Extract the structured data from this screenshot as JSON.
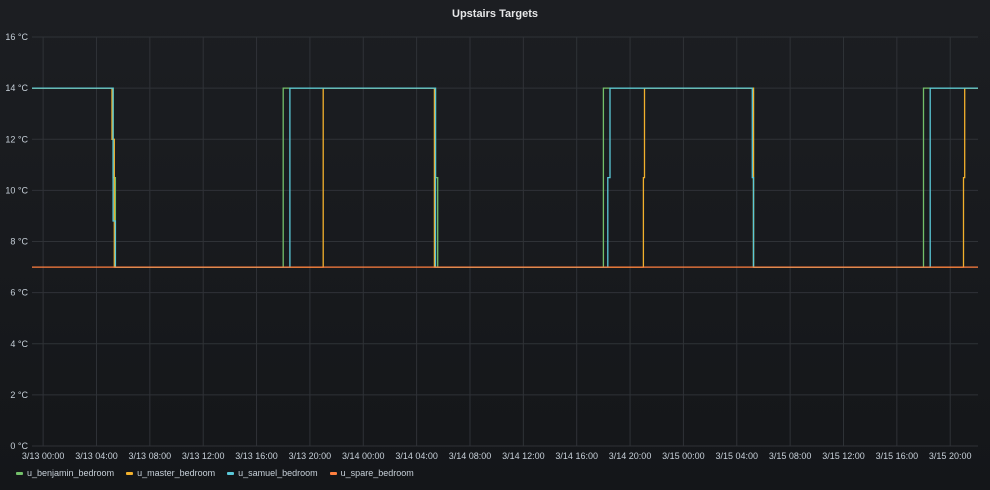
{
  "chart_data": {
    "type": "line",
    "title": "Upstairs Targets",
    "ylim": [
      0,
      16
    ],
    "y_ticks": [
      "0 °C",
      "2 °C",
      "4 °C",
      "6 °C",
      "8 °C",
      "10 °C",
      "12 °C",
      "14 °C",
      "16 °C"
    ],
    "y_values": [
      0,
      2,
      4,
      6,
      8,
      10,
      12,
      14,
      16
    ],
    "xlim": [
      "3/12 23:10",
      "3/15 22:05"
    ],
    "x_ticks": [
      "3/13 00:00",
      "3/13 04:00",
      "3/13 08:00",
      "3/13 12:00",
      "3/13 16:00",
      "3/13 20:00",
      "3/14 00:00",
      "3/14 04:00",
      "3/14 08:00",
      "3/14 12:00",
      "3/14 16:00",
      "3/14 20:00",
      "3/15 00:00",
      "3/15 04:00",
      "3/15 08:00",
      "3/15 12:00",
      "3/15 16:00",
      "3/15 20:00"
    ],
    "grid": true,
    "legend_position": "bottom-left",
    "series": [
      {
        "name": "u_benjamin_bedroom",
        "color": "#73bf69",
        "points": [
          [
            "3/12 23:10",
            14
          ],
          [
            "3/13 05:15",
            14
          ],
          [
            "3/13 05:15",
            10.5
          ],
          [
            "3/13 05:25",
            10.5
          ],
          [
            "3/13 05:25",
            7
          ],
          [
            "3/13 18:00",
            7
          ],
          [
            "3/13 18:00",
            14
          ],
          [
            "3/14 05:25",
            14
          ],
          [
            "3/14 05:25",
            10.5
          ],
          [
            "3/14 05:35",
            10.5
          ],
          [
            "3/14 05:35",
            7
          ],
          [
            "3/14 18:00",
            7
          ],
          [
            "3/14 18:00",
            14
          ],
          [
            "3/15 05:15",
            14
          ],
          [
            "3/15 05:15",
            7
          ],
          [
            "3/15 18:00",
            7
          ],
          [
            "3/15 18:00",
            14
          ],
          [
            "3/15 22:05",
            14
          ]
        ]
      },
      {
        "name": "u_master_bedroom",
        "color": "#f2b02c",
        "points": [
          [
            "3/12 23:10",
            14
          ],
          [
            "3/13 05:10",
            14
          ],
          [
            "3/13 05:10",
            12
          ],
          [
            "3/13 05:20",
            12
          ],
          [
            "3/13 05:20",
            7
          ],
          [
            "3/13 21:00",
            7
          ],
          [
            "3/13 21:00",
            14
          ],
          [
            "3/14 05:20",
            14
          ],
          [
            "3/14 05:20",
            7
          ],
          [
            "3/14 21:00",
            7
          ],
          [
            "3/14 21:00",
            10.5
          ],
          [
            "3/14 21:05",
            10.5
          ],
          [
            "3/14 21:05",
            14
          ],
          [
            "3/15 05:15",
            14
          ],
          [
            "3/15 05:15",
            7
          ],
          [
            "3/15 21:00",
            7
          ],
          [
            "3/15 21:00",
            10.5
          ],
          [
            "3/15 21:05",
            10.5
          ],
          [
            "3/15 21:05",
            14
          ],
          [
            "3/15 22:05",
            14
          ]
        ]
      },
      {
        "name": "u_samuel_bedroom",
        "color": "#5ac8d8",
        "points": [
          [
            "3/12 23:10",
            14
          ],
          [
            "3/13 05:15",
            14
          ],
          [
            "3/13 05:15",
            8.8
          ],
          [
            "3/13 05:25",
            8.8
          ],
          [
            "3/13 05:25",
            7
          ],
          [
            "3/13 18:30",
            7
          ],
          [
            "3/13 18:30",
            14
          ],
          [
            "3/14 05:25",
            14
          ],
          [
            "3/14 05:25",
            7
          ],
          [
            "3/14 18:20",
            7
          ],
          [
            "3/14 18:20",
            10.5
          ],
          [
            "3/14 18:30",
            10.5
          ],
          [
            "3/14 18:30",
            14
          ],
          [
            "3/15 05:10",
            14
          ],
          [
            "3/15 05:10",
            10.5
          ],
          [
            "3/15 05:15",
            10.5
          ],
          [
            "3/15 05:15",
            7
          ],
          [
            "3/15 18:30",
            7
          ],
          [
            "3/15 18:30",
            14
          ],
          [
            "3/15 22:05",
            14
          ]
        ]
      },
      {
        "name": "u_spare_bedroom",
        "color": "#ff7f3f",
        "points": [
          [
            "3/12 23:10",
            7
          ],
          [
            "3/15 22:05",
            7
          ]
        ]
      }
    ]
  }
}
